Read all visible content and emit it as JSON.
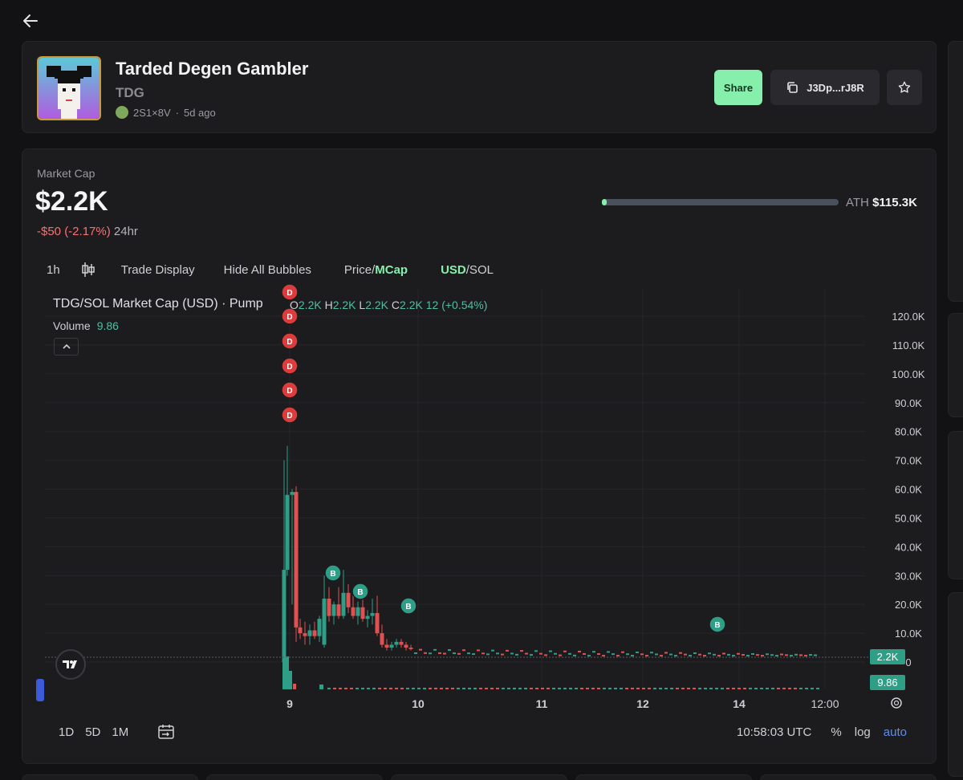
{
  "header": {
    "token_name": "Tarded Degen Gambler",
    "ticker": "TDG",
    "creator": "2S1×8V",
    "age": "5d ago",
    "share_label": "Share",
    "address": "J3Dp...rJ8R"
  },
  "market": {
    "label": "Market Cap",
    "value": "$2.2K",
    "change": "-$50 (-2.17%)",
    "period": "24hr",
    "ath_label": "ATH",
    "ath_value": "$115.3K",
    "ath_progress": 0.019
  },
  "toolbar": {
    "interval": "1h",
    "trade_display": "Trade Display",
    "hide_bubbles": "Hide All Bubbles",
    "price_label": "Price/",
    "mcap_label": "MCap",
    "usd_label": "USD",
    "sol_label": "/SOL"
  },
  "legend": {
    "title": "TDG/SOL Market Cap (USD) · Pump",
    "o_label": "O",
    "o_value": "2.2K",
    "h_label": "H",
    "h_value": "2.2K",
    "l_label": "L",
    "l_value": "2.2K",
    "c_label": "C",
    "c_value": "2.2K",
    "change": "12 (+0.54%)",
    "volume_label": "Volume",
    "volume_value": "9.86"
  },
  "chart_data": {
    "type": "candlestick",
    "y_ticks": [
      "120.0K",
      "110.0K",
      "100.0K",
      "90.0K",
      "80.0K",
      "70.0K",
      "60.0K",
      "50.0K",
      "40.0K",
      "30.0K",
      "20.0K",
      "10.0K",
      "0"
    ],
    "x_ticks": [
      "9",
      "10",
      "11",
      "12",
      "14",
      "12:00"
    ],
    "ylim": [
      0,
      125000
    ],
    "last_price_label": "2.2K",
    "last_volume_label": "9.86",
    "markers": [
      {
        "type": "D",
        "color": "#dc3c3c"
      },
      {
        "type": "B",
        "color": "#2f9e86"
      }
    ]
  },
  "bottom": {
    "ranges": [
      "1D",
      "5D",
      "1M"
    ],
    "time": "10:58:03 UTC",
    "pct": "%",
    "log": "log",
    "auto": "auto"
  },
  "colors": {
    "up": "#2f9e86",
    "down": "#e05252",
    "accent_green": "#86efac"
  }
}
